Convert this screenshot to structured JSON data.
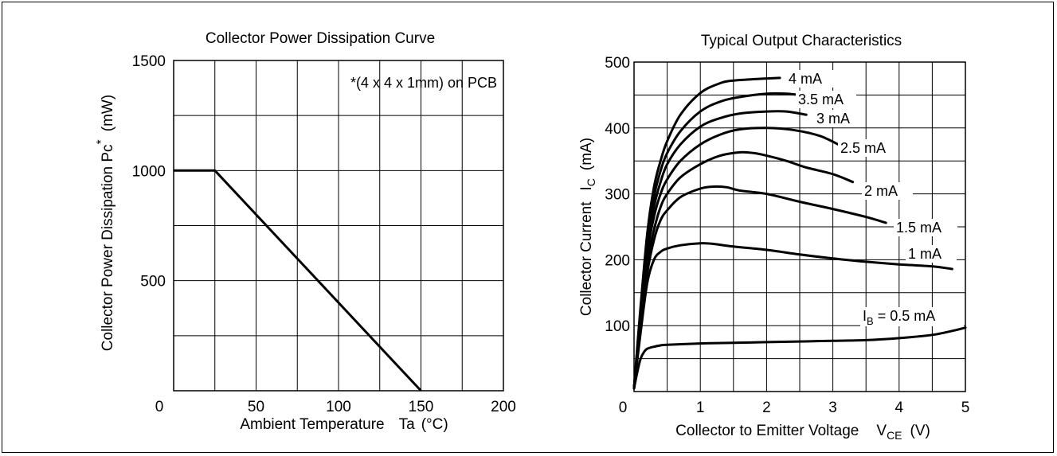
{
  "chart_data": [
    {
      "type": "line",
      "title": "Collector Power Dissipation Curve",
      "xlabel": "Ambient Temperature",
      "xlabel_symbol": "Ta",
      "xlabel_unit": "(°C)",
      "ylabel": "Collector Power Dissipation Pc",
      "ylabel_sup": "*",
      "ylabel_unit": "(mW)",
      "annotation": "*(4 x 4 x 1mm) on PCB",
      "xlim": [
        0,
        200
      ],
      "ylim": [
        0,
        1500
      ],
      "xticks": [
        "0",
        "50",
        "100",
        "150",
        "200"
      ],
      "yticks": [
        "0",
        "500",
        "1000",
        "1500"
      ],
      "grid": true,
      "series": [
        {
          "x": [
            0,
            25,
            150
          ],
          "y": [
            1000,
            1000,
            0
          ]
        }
      ]
    },
    {
      "type": "line",
      "title": "Typical Output Characteristics",
      "xlabel": "Collector to Emitter Voltage",
      "xlabel_sym_main": "V",
      "xlabel_sym_sub": "CE",
      "xlabel_unit": "(V)",
      "ylabel": "Collector Current",
      "ylabel_sym_main": "I",
      "ylabel_sym_sub": "C",
      "ylabel_unit": "(mA)",
      "xlim": [
        0,
        5
      ],
      "ylim": [
        0,
        500
      ],
      "xticks": [
        "0",
        "1",
        "2",
        "3",
        "4",
        "5"
      ],
      "yticks": [
        "100",
        "200",
        "300",
        "400",
        "500"
      ],
      "grid": true,
      "series": [
        {
          "name": "4 mA",
          "x": [
            0,
            0.1,
            0.2,
            0.3,
            0.4,
            0.5,
            0.7,
            1.0,
            1.3,
            1.5,
            1.8,
            2.2
          ],
          "y": [
            5,
            130,
            240,
            310,
            350,
            380,
            420,
            453,
            468,
            472,
            474,
            476
          ]
        },
        {
          "name": "3.5 mA",
          "x": [
            0,
            0.1,
            0.2,
            0.3,
            0.4,
            0.5,
            0.7,
            1.0,
            1.3,
            1.6,
            2.0,
            2.3,
            2.5
          ],
          "y": [
            5,
            125,
            230,
            295,
            335,
            362,
            395,
            425,
            440,
            447,
            452,
            452,
            450
          ]
        },
        {
          "name": "3 mA",
          "x": [
            0,
            0.1,
            0.2,
            0.3,
            0.4,
            0.5,
            0.7,
            1.0,
            1.3,
            1.6,
            2.0,
            2.3,
            2.6
          ],
          "y": [
            5,
            120,
            220,
            280,
            318,
            345,
            375,
            402,
            415,
            422,
            425,
            425,
            420
          ]
        },
        {
          "name": "2.5 mA",
          "x": [
            0,
            0.1,
            0.2,
            0.3,
            0.4,
            0.5,
            0.7,
            1.0,
            1.3,
            1.6,
            2.0,
            2.4,
            2.8,
            3.1
          ],
          "y": [
            5,
            115,
            210,
            265,
            300,
            322,
            350,
            375,
            390,
            398,
            400,
            397,
            388,
            374
          ]
        },
        {
          "name": "2 mA",
          "x": [
            0,
            0.1,
            0.2,
            0.3,
            0.4,
            0.5,
            0.7,
            1.0,
            1.3,
            1.6,
            1.8,
            2.0,
            2.3,
            2.6,
            3.0,
            3.3
          ],
          "y": [
            5,
            110,
            195,
            245,
            280,
            300,
            325,
            345,
            358,
            363,
            362,
            358,
            350,
            340,
            330,
            318
          ]
        },
        {
          "name": "1.5 mA",
          "x": [
            0,
            0.1,
            0.2,
            0.3,
            0.4,
            0.5,
            0.7,
            1.0,
            1.2,
            1.4,
            1.6,
            2.0,
            2.5,
            3.0,
            3.5,
            3.8
          ],
          "y": [
            5,
            100,
            180,
            230,
            260,
            275,
            295,
            308,
            311,
            310,
            305,
            300,
            288,
            277,
            265,
            256
          ]
        },
        {
          "name": "1 mA",
          "x": [
            0,
            0.1,
            0.2,
            0.3,
            0.4,
            0.5,
            0.7,
            1.0,
            1.2,
            1.5,
            2.0,
            2.5,
            3.0,
            3.5,
            4.0,
            4.5,
            4.8
          ],
          "y": [
            5,
            90,
            165,
            200,
            212,
            217,
            222,
            225,
            224,
            220,
            215,
            208,
            202,
            197,
            193,
            190,
            186
          ]
        },
        {
          "name": "I_B = 0.5 mA",
          "x": [
            0,
            0.05,
            0.1,
            0.15,
            0.2,
            0.3,
            0.4,
            0.5,
            1.0,
            1.5,
            2.0,
            2.5,
            3.0,
            3.5,
            4.0,
            4.5,
            4.8,
            5.0
          ],
          "y": [
            5,
            30,
            50,
            60,
            65,
            68,
            70,
            71,
            73,
            74,
            75,
            76,
            77,
            78,
            81,
            86,
            92,
            97
          ]
        }
      ]
    }
  ],
  "right_labels": {
    "s0": "4 mA",
    "s1": "3.5 mA",
    "s2": "3 mA",
    "s3": "2.5 mA",
    "s4": "2 mA",
    "s5": "1.5 mA",
    "s6": "1 mA",
    "s7_main": "I",
    "s7_sub": "B",
    "s7_rest": " = 0.5 mA"
  },
  "colors": {
    "line": "#000000",
    "grid": "#000000",
    "background": "#ffffff"
  }
}
